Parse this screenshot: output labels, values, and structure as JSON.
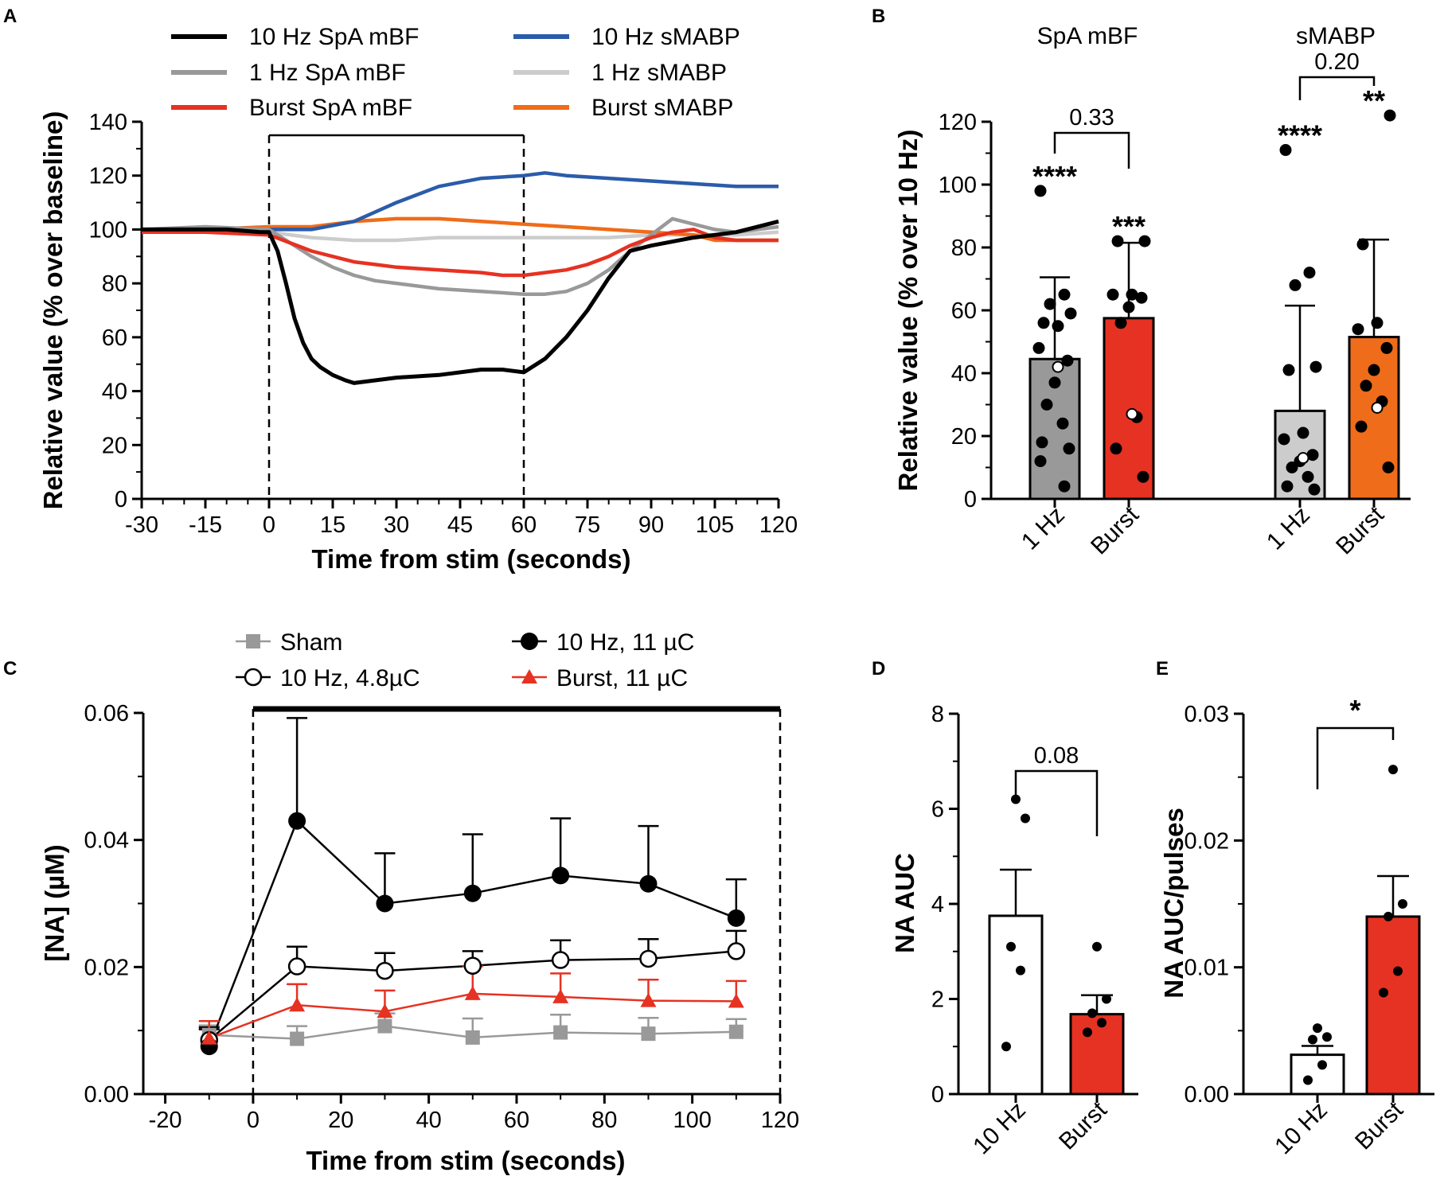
{
  "chart_data": [
    {
      "panel": "A",
      "type": "line",
      "title": "",
      "xlabel": "Time from stim (seconds)",
      "ylabel": "Relative value (% over baseline)",
      "xlim": [
        -30,
        120
      ],
      "ylim": [
        0,
        140
      ],
      "xticks": [
        -30,
        -15,
        0,
        15,
        30,
        45,
        60,
        75,
        90,
        105,
        120
      ],
      "yticks": [
        0,
        20,
        40,
        60,
        80,
        100,
        120,
        140
      ],
      "stim_window": [
        0,
        60
      ],
      "series": [
        {
          "name": "10 Hz SpA mBF",
          "color": "#000000",
          "x": [
            -30,
            -20,
            -10,
            -2,
            0,
            2,
            4,
            6,
            8,
            10,
            12,
            15,
            18,
            20,
            25,
            30,
            40,
            50,
            55,
            60,
            65,
            70,
            75,
            80,
            85,
            90,
            100,
            110,
            120
          ],
          "y": [
            100,
            100,
            100,
            99,
            99,
            92,
            80,
            67,
            58,
            52,
            49,
            46,
            44,
            43,
            44,
            45,
            46,
            48,
            48,
            47,
            52,
            60,
            70,
            82,
            92,
            94,
            97,
            99,
            103
          ]
        },
        {
          "name": "1 Hz SpA mBF",
          "color": "#999999",
          "x": [
            -30,
            -15,
            0,
            5,
            10,
            15,
            20,
            25,
            30,
            40,
            50,
            60,
            65,
            70,
            75,
            80,
            85,
            90,
            95,
            100,
            105,
            110,
            120
          ],
          "y": [
            100,
            101,
            100,
            95,
            90,
            86,
            83,
            81,
            80,
            78,
            77,
            76,
            76,
            77,
            80,
            85,
            92,
            98,
            104,
            102,
            100,
            99,
            101
          ]
        },
        {
          "name": "Burst SpA mBF",
          "color": "#e63222",
          "x": [
            -30,
            -15,
            0,
            5,
            10,
            15,
            20,
            25,
            30,
            40,
            50,
            55,
            60,
            65,
            70,
            75,
            80,
            85,
            90,
            95,
            100,
            105,
            110,
            120
          ],
          "y": [
            99,
            99,
            98,
            95,
            92,
            90,
            88,
            87,
            86,
            85,
            84,
            83,
            83,
            84,
            85,
            87,
            90,
            94,
            97,
            99,
            100,
            97,
            96,
            96
          ]
        },
        {
          "name": "10 Hz sMABP",
          "color": "#2b5caa",
          "x": [
            -30,
            -15,
            0,
            10,
            20,
            30,
            40,
            50,
            60,
            65,
            70,
            80,
            90,
            100,
            110,
            120
          ],
          "y": [
            100,
            100,
            100,
            100,
            103,
            110,
            116,
            119,
            120,
            121,
            120,
            119,
            118,
            117,
            116,
            116
          ]
        },
        {
          "name": "1 Hz sMABP",
          "color": "#cccccc",
          "x": [
            -30,
            -15,
            0,
            10,
            20,
            30,
            40,
            50,
            60,
            70,
            80,
            90,
            100,
            110,
            120
          ],
          "y": [
            99,
            100,
            99,
            97,
            96,
            96,
            97,
            97,
            97,
            97,
            97,
            98,
            98,
            98,
            99
          ]
        },
        {
          "name": "Burst sMABP",
          "color": "#ef6c1a",
          "x": [
            -30,
            -15,
            0,
            10,
            20,
            30,
            40,
            50,
            60,
            70,
            80,
            90,
            100,
            105,
            110,
            120
          ],
          "y": [
            99,
            100,
            101,
            101,
            103,
            104,
            104,
            103,
            102,
            101,
            100,
            99,
            98,
            96,
            96,
            96
          ]
        }
      ]
    },
    {
      "panel": "B",
      "type": "bar",
      "ylabel": "Relative value (% over 10 Hz)",
      "ylim": [
        0,
        120
      ],
      "yticks": [
        0,
        20,
        40,
        60,
        80,
        100,
        120
      ],
      "groups": [
        {
          "title": "SpA mBF",
          "bars": [
            {
              "label": "1 Hz",
              "mean": 44.5,
              "sd_upper": 70.5,
              "color": "#999999",
              "sig": "****",
              "points": [
                98,
                65,
                62,
                59,
                56,
                55,
                48,
                44,
                37,
                30,
                24,
                18,
                16,
                12,
                4
              ],
              "open_points": [
                42
              ]
            },
            {
              "label": "Burst",
              "mean": 57.5,
              "sd_upper": 81.5,
              "color": "#e63222",
              "sig": "***",
              "points": [
                82,
                82,
                65,
                65,
                64,
                61,
                56,
                26,
                16,
                7
              ],
              "open_points": [
                27
              ]
            }
          ],
          "comparison": "0.33"
        },
        {
          "title": "sMABP",
          "bars": [
            {
              "label": "1 Hz",
              "mean": 28,
              "sd_upper": 61.5,
              "color": "#cccccc",
              "sig": "****",
              "points": [
                111,
                72,
                68,
                42,
                41,
                21,
                19,
                14,
                12,
                10,
                7,
                4,
                3
              ],
              "open_points": [
                13
              ]
            },
            {
              "label": "Burst",
              "mean": 51.5,
              "sd_upper": 82.5,
              "color": "#ef6c1a",
              "sig": "**",
              "points": [
                122,
                81,
                56,
                54,
                48,
                41,
                36,
                31,
                23,
                10
              ],
              "open_points": [
                29
              ]
            }
          ],
          "comparison": "0.20"
        }
      ]
    },
    {
      "panel": "C",
      "type": "line",
      "xlabel": "Time from stim (seconds)",
      "ylabel": "[NA] (µM)",
      "xlim": [
        -25,
        120
      ],
      "ylim": [
        0,
        0.06
      ],
      "xticks": [
        -20,
        0,
        20,
        40,
        60,
        80,
        100,
        120
      ],
      "yticks": [
        0.0,
        0.02,
        0.04,
        0.06
      ],
      "ytick_labels": [
        "0.00",
        "0.02",
        "0.04",
        "0.06"
      ],
      "stim_window": [
        0,
        120
      ],
      "x": [
        -10,
        10,
        30,
        50,
        70,
        90,
        110
      ],
      "series": [
        {
          "name": "Sham",
          "marker": "square",
          "color": "#999999",
          "y": [
            0.0093,
            0.0087,
            0.0107,
            0.0089,
            0.0097,
            0.0095,
            0.0098
          ],
          "err": [
            0.0015,
            0.002,
            0.002,
            0.003,
            0.0028,
            0.0025,
            0.002
          ]
        },
        {
          "name": "10 Hz, 4.8µC",
          "marker": "open-circle",
          "color": "#000000",
          "y": [
            0.0085,
            0.0201,
            0.0194,
            0.0202,
            0.0211,
            0.0213,
            0.0225
          ],
          "err": [
            0.002,
            0.0031,
            0.0028,
            0.0023,
            0.0031,
            0.0031,
            0.0032
          ]
        },
        {
          "name": "10 Hz, 11 µC",
          "marker": "filled-circle",
          "color": "#000000",
          "y": [
            0.0075,
            0.043,
            0.03,
            0.0316,
            0.0344,
            0.0331,
            0.0277
          ],
          "err": [
            0.0027,
            0.0162,
            0.0079,
            0.0093,
            0.009,
            0.0091,
            0.0061
          ]
        },
        {
          "name": "Burst, 11 µC",
          "marker": "triangle",
          "color": "#e63222",
          "y": [
            0.0088,
            0.014,
            0.013,
            0.0158,
            0.0153,
            0.0147,
            0.0146
          ],
          "err": [
            0.0027,
            0.0033,
            0.0033,
            0.0043,
            0.0037,
            0.0033,
            0.0032
          ]
        }
      ]
    },
    {
      "panel": "D",
      "type": "bar",
      "ylabel": "NA AUC",
      "ylim": [
        0,
        8
      ],
      "yticks": [
        0,
        2,
        4,
        6,
        8
      ],
      "bars": [
        {
          "label": "10 Hz",
          "mean": 3.75,
          "sem_upper": 4.72,
          "color": "#ffffff",
          "points": [
            6.2,
            5.8,
            3.1,
            2.6,
            1.0
          ]
        },
        {
          "label": "Burst",
          "mean": 1.68,
          "sem_upper": 2.08,
          "color": "#e63222",
          "points": [
            3.1,
            2.0,
            1.7,
            1.5,
            1.3
          ]
        }
      ],
      "comparison": "0.08"
    },
    {
      "panel": "E",
      "type": "bar",
      "ylabel": "NA AUC/pulses",
      "ylim": [
        0,
        0.03
      ],
      "yticks": [
        0,
        0.01,
        0.02,
        0.03
      ],
      "ytick_labels": [
        "0.00",
        "0.01",
        "0.02",
        "0.03"
      ],
      "bars": [
        {
          "label": "10 Hz",
          "mean": 0.0031,
          "sem_upper": 0.0038,
          "color": "#ffffff",
          "points": [
            0.0052,
            0.0045,
            0.0043,
            0.0023,
            0.0011
          ]
        },
        {
          "label": "Burst",
          "mean": 0.014,
          "sem_upper": 0.0172,
          "color": "#e63222",
          "points": [
            0.0256,
            0.015,
            0.014,
            0.0097,
            0.008
          ]
        }
      ],
      "comparison": "*"
    }
  ]
}
